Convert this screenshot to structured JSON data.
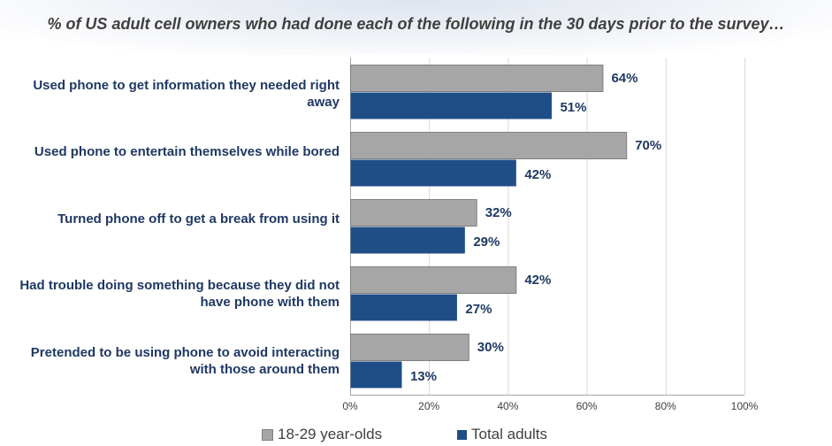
{
  "chart_data": {
    "type": "bar",
    "orientation": "horizontal",
    "title": "% of US adult cell owners who had done each of the following in the 30 days prior to the survey…",
    "categories": [
      "Used phone to get information they needed right away",
      "Used phone to entertain themselves while bored",
      "Turned phone off to get a break from using it",
      "Had trouble doing something because they did not have phone with them",
      "Pretended to be using phone to avoid interacting with those around them"
    ],
    "series": [
      {
        "name": "18-29 year-olds",
        "color": "#a6a6a6",
        "values": [
          64,
          70,
          32,
          42,
          30
        ],
        "labels": [
          "64%",
          "70%",
          "32%",
          "42%",
          "30%"
        ]
      },
      {
        "name": "Total adults",
        "color": "#1f4e87",
        "values": [
          51,
          42,
          29,
          27,
          13
        ],
        "labels": [
          "51%",
          "42%",
          "29%",
          "27%",
          "13%"
        ]
      }
    ],
    "xlim": [
      0,
      100
    ],
    "xticks": [
      0,
      20,
      40,
      60,
      80,
      100
    ],
    "xtick_labels": [
      "0%",
      "20%",
      "40%",
      "60%",
      "80%",
      "100%"
    ],
    "grid": true,
    "legend_position": "bottom"
  }
}
